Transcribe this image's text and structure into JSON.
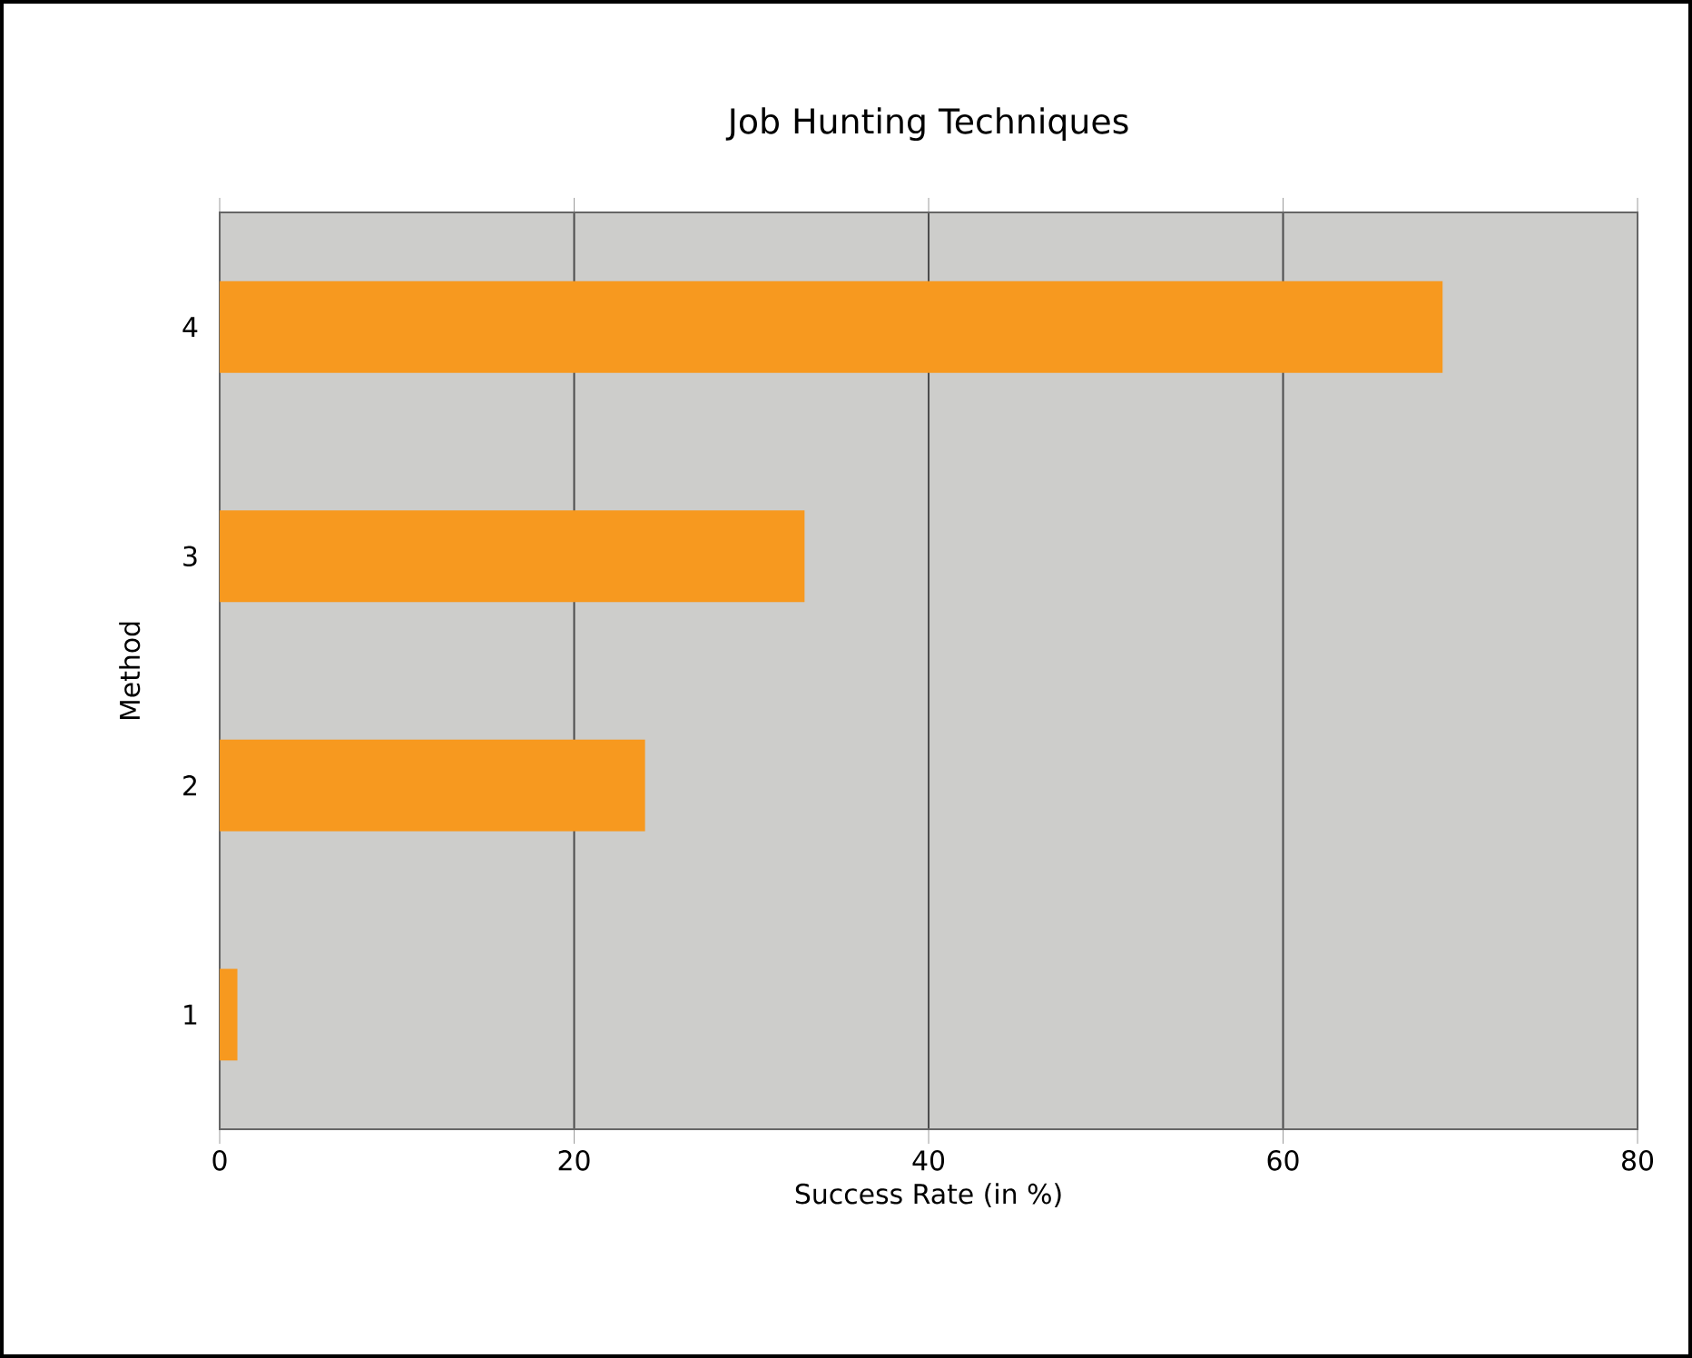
{
  "chart_data": {
    "type": "bar",
    "orientation": "horizontal",
    "title": "Job Hunting Techniques",
    "xlabel": "Success Rate (in %)",
    "ylabel": "Method",
    "categories": [
      "4",
      "3",
      "2",
      "1"
    ],
    "values": [
      69,
      33,
      24,
      1
    ],
    "color": "#f7991f",
    "xlim": [
      0,
      80
    ],
    "xticks": [
      0,
      20,
      40,
      60,
      80
    ],
    "grid": "x"
  }
}
